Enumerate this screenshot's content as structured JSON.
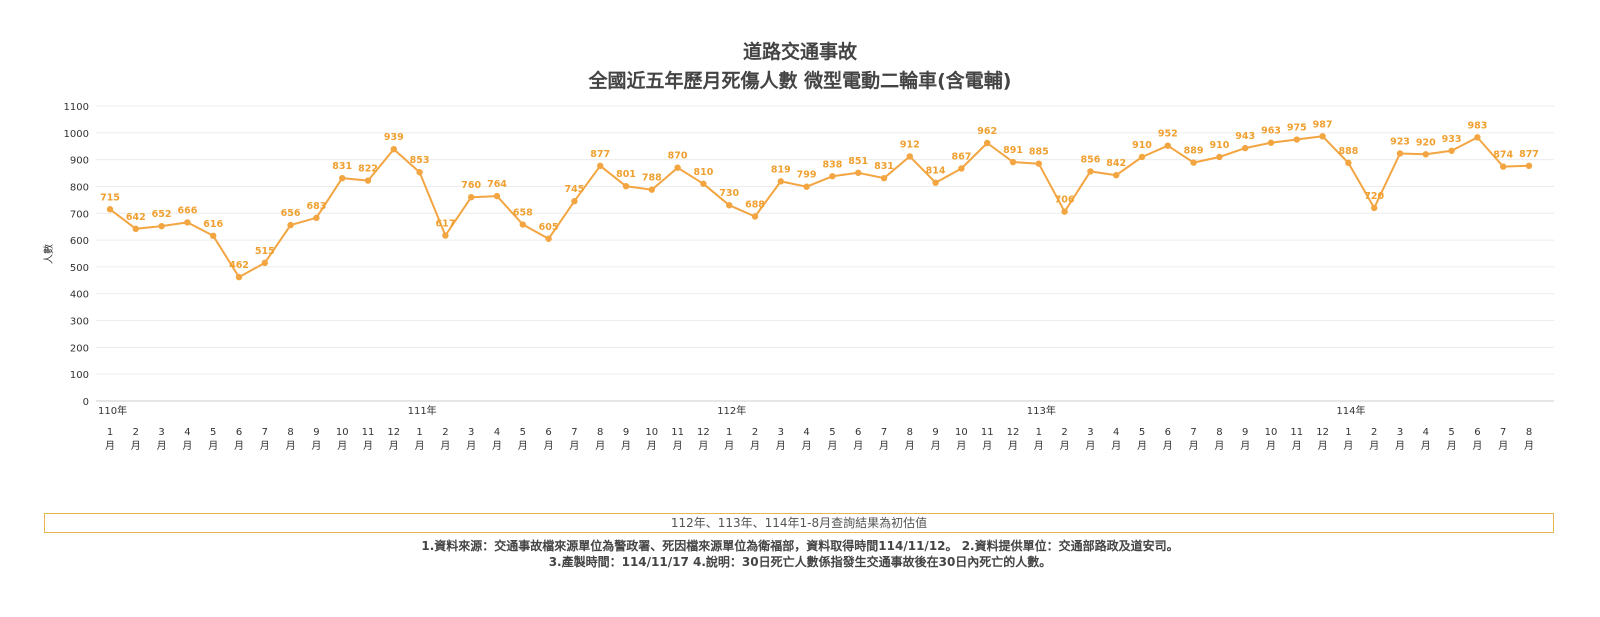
{
  "chart_data": {
    "type": "line",
    "title": "道路交通事故",
    "subtitle": "全國近五年歷月死傷人數 微型電動二輪車(含電輔)",
    "ylabel": "人數",
    "xlabel": "",
    "ylim": [
      0,
      1100
    ],
    "yticks": [
      0,
      100,
      200,
      300,
      400,
      500,
      600,
      700,
      800,
      900,
      1000,
      1100
    ],
    "grid": true,
    "line_color": "#f2a541",
    "label_color": "#f0a030",
    "x_month_labels": [
      "1",
      "2",
      "3",
      "4",
      "5",
      "6",
      "7",
      "8",
      "9",
      "10",
      "11",
      "12",
      "1",
      "2",
      "3",
      "4",
      "5",
      "6",
      "7",
      "8",
      "9",
      "10",
      "11",
      "12",
      "1",
      "2",
      "3",
      "4",
      "5",
      "6",
      "7",
      "8",
      "9",
      "10",
      "11",
      "12",
      "1",
      "2",
      "3",
      "4",
      "5",
      "6",
      "7",
      "8",
      "9",
      "10",
      "11",
      "12",
      "1",
      "2",
      "3",
      "4",
      "5",
      "6",
      "7",
      "8"
    ],
    "month_unit": "月",
    "year_labels": [
      {
        "label": "110年",
        "index": 0
      },
      {
        "label": "111年",
        "index": 12
      },
      {
        "label": "112年",
        "index": 24
      },
      {
        "label": "113年",
        "index": 36
      },
      {
        "label": "114年",
        "index": 48
      }
    ],
    "values": [
      715,
      642,
      652,
      666,
      616,
      462,
      515,
      656,
      683,
      831,
      822,
      939,
      853,
      617,
      760,
      764,
      658,
      605,
      745,
      877,
      801,
      788,
      870,
      810,
      730,
      688,
      819,
      799,
      838,
      851,
      831,
      912,
      814,
      867,
      962,
      891,
      885,
      706,
      856,
      842,
      910,
      952,
      889,
      910,
      943,
      963,
      975,
      987,
      888,
      720,
      923,
      920,
      933,
      983,
      874,
      877
    ]
  },
  "note_box": "112年、113年、114年1-8月查詢結果為初估值",
  "footnote_line1": "1.資料來源：交通事故檔來源單位為警政署、死因檔來源單位為衛福部，資料取得時間114/11/12。 2.資料提供單位：交通部路政及道安司。",
  "footnote_line2": "3.產製時間：114/11/17 4.說明：30日死亡人數係指發生交通事故後在30日內死亡的人數。"
}
